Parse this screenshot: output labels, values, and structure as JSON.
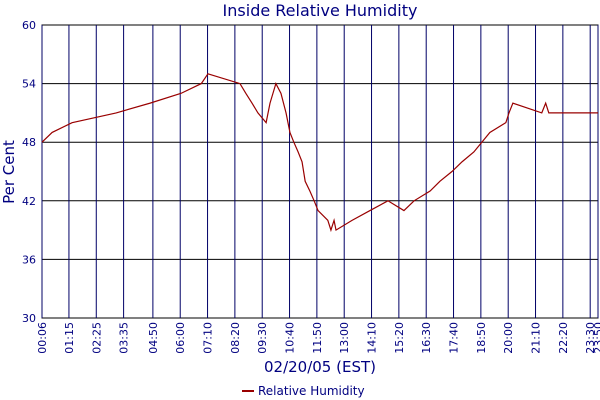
{
  "chart_data": {
    "type": "line",
    "title": "Inside Relative Humidity",
    "x_label": "02/20/05 (EST)",
    "y_label": "Per Cent",
    "x": [
      6,
      32,
      83,
      196,
      283,
      362,
      414,
      431,
      513,
      528,
      544,
      559,
      580,
      590,
      605,
      618,
      631,
      641,
      651,
      662,
      672,
      680,
      692,
      703,
      713,
      738,
      746,
      754,
      759,
      800,
      846,
      892,
      933,
      959,
      1000,
      1025,
      1056,
      1082,
      1112,
      1153,
      1194,
      1202,
      1212,
      1286,
      1296,
      1304,
      1430
    ],
    "series": [
      {
        "name": "Relative Humidity",
        "color": "#990000",
        "values": [
          48,
          49,
          50,
          51,
          52,
          53,
          54,
          55,
          54,
          53,
          52,
          51,
          50,
          52,
          54,
          53,
          51,
          49,
          48,
          47,
          46,
          44,
          43,
          42,
          41,
          40,
          39,
          40,
          39,
          40,
          41,
          42,
          41,
          42,
          43,
          44,
          45,
          46,
          47,
          49,
          50,
          51,
          52,
          51,
          52,
          51,
          51
        ]
      }
    ],
    "xlim": [
      6,
      1430
    ],
    "xticks": [
      {
        "value": 6,
        "label": "00:06"
      },
      {
        "value": 75,
        "label": "01:15"
      },
      {
        "value": 145,
        "label": "02:25"
      },
      {
        "value": 215,
        "label": "03:35"
      },
      {
        "value": 290,
        "label": "04:50"
      },
      {
        "value": 360,
        "label": "06:00"
      },
      {
        "value": 430,
        "label": "07:10"
      },
      {
        "value": 500,
        "label": "08:20"
      },
      {
        "value": 570,
        "label": "09:30"
      },
      {
        "value": 640,
        "label": "10:40"
      },
      {
        "value": 710,
        "label": "11:50"
      },
      {
        "value": 780,
        "label": "13:00"
      },
      {
        "value": 850,
        "label": "14:10"
      },
      {
        "value": 920,
        "label": "15:20"
      },
      {
        "value": 990,
        "label": "16:30"
      },
      {
        "value": 1060,
        "label": "17:40"
      },
      {
        "value": 1130,
        "label": "18:50"
      },
      {
        "value": 1200,
        "label": "20:00"
      },
      {
        "value": 1270,
        "label": "21:10"
      },
      {
        "value": 1340,
        "label": "22:20"
      },
      {
        "value": 1410,
        "label": "23:30"
      },
      {
        "value": 1430,
        "label": "23:50"
      }
    ],
    "ylim": [
      30,
      60
    ],
    "yticks": [
      30,
      36,
      42,
      48,
      54,
      60
    ],
    "grid": true
  }
}
